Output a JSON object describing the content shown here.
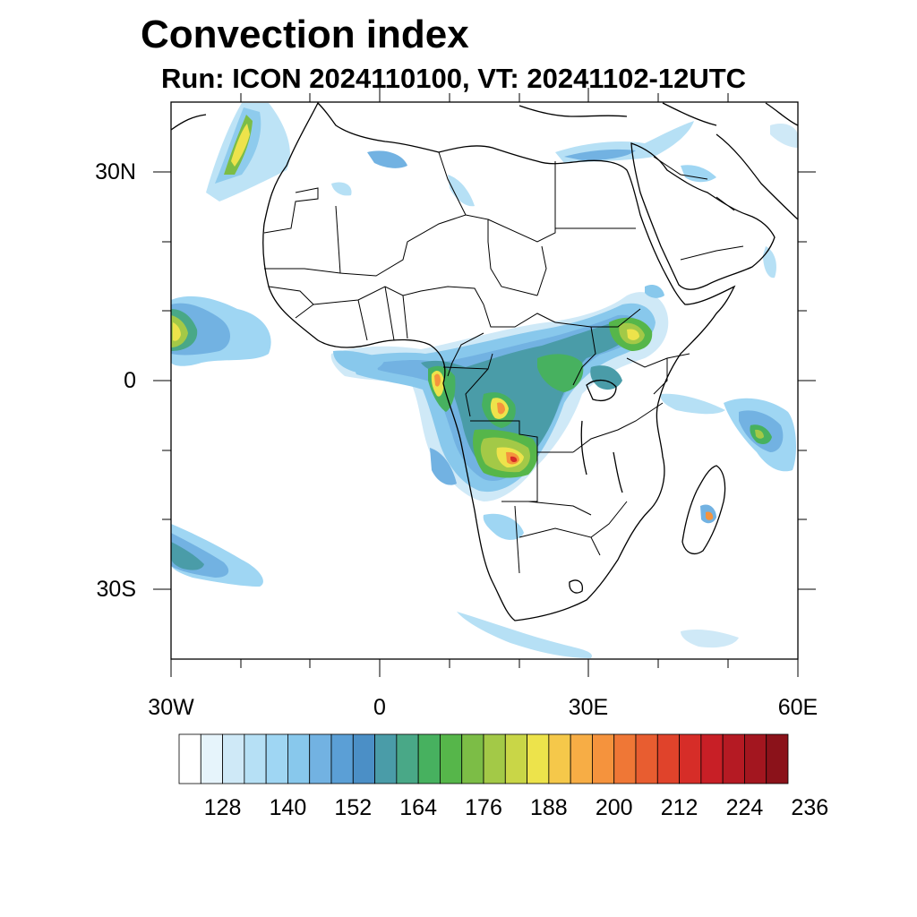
{
  "title": "Convection index",
  "subtitle": "Run: ICON 2024110100,  VT: 20241102-12UTC",
  "axes": {
    "x_ticks": [
      "30W",
      "0",
      "30E",
      "60E"
    ],
    "y_ticks": [
      "30N",
      "0",
      "30S"
    ]
  },
  "colorbar": {
    "labels": [
      "128",
      "140",
      "152",
      "164",
      "176",
      "188",
      "200",
      "212",
      "224",
      "236"
    ],
    "colors": [
      "#ffffff",
      "#e6f4fb",
      "#cfe9f7",
      "#b6e0f5",
      "#9fd6f3",
      "#88c8ec",
      "#72b2e2",
      "#5b9fd6",
      "#4b8fc6",
      "#4a9ca8",
      "#49a887",
      "#47b15f",
      "#56b64a",
      "#7cbd46",
      "#a3c947",
      "#c9d647",
      "#ede34b",
      "#f5c84a",
      "#f7ad45",
      "#f5933d",
      "#ef7736",
      "#e85d30",
      "#e0432b",
      "#d62d28",
      "#c81f26",
      "#b51a23",
      "#a3161f",
      "#8b121a"
    ]
  },
  "map": {
    "projection": "lat-lon",
    "lon_range": [
      -30,
      60
    ],
    "lat_range": [
      -40,
      40
    ],
    "regions": "Africa, Arabian Peninsula, Madagascar"
  }
}
